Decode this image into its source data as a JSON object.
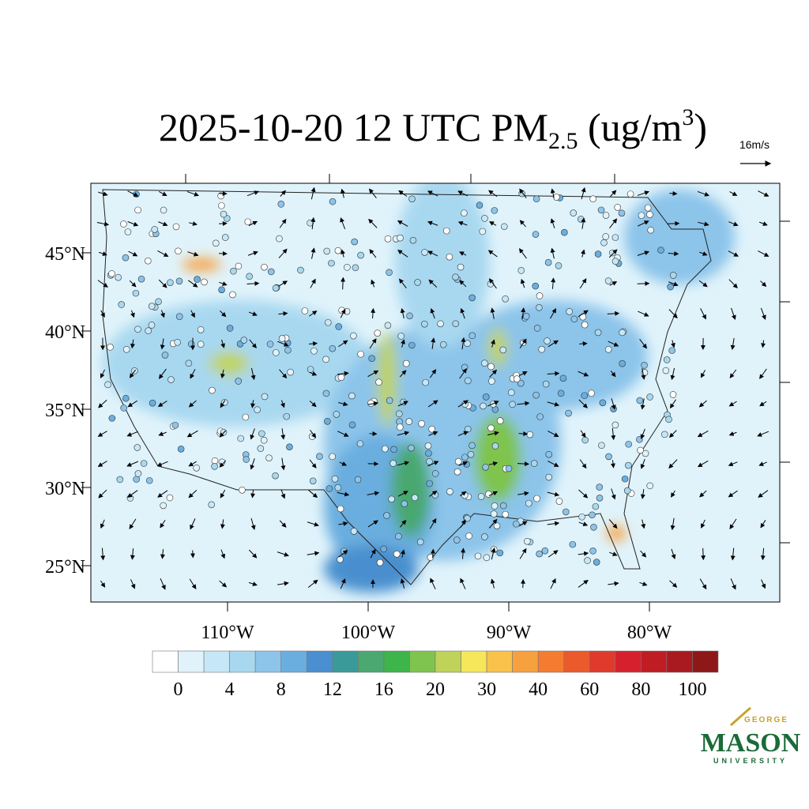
{
  "title": {
    "main": "2025-10-20 12 UTC PM",
    "sub": "2.5",
    "mid": " (ug/m",
    "sup": "3",
    "end": ")"
  },
  "vector_reference": "16m/s",
  "lat_ticks": [
    {
      "value": 45,
      "label": "45°N"
    },
    {
      "value": 40,
      "label": "40°N"
    },
    {
      "value": 35,
      "label": "35°N"
    },
    {
      "value": 30,
      "label": "30°N"
    },
    {
      "value": 25,
      "label": "25°N"
    }
  ],
  "lon_ticks": [
    {
      "value": -110,
      "label": "110°W"
    },
    {
      "value": -100,
      "label": "100°W"
    },
    {
      "value": -90,
      "label": "90°W"
    },
    {
      "value": -80,
      "label": "80°W"
    }
  ],
  "colorbar": {
    "colors": [
      "#ffffff",
      "#e0f3fb",
      "#c6e7f7",
      "#a8d8f0",
      "#8cc4ea",
      "#6aaedf",
      "#4a8fcf",
      "#3a9a9a",
      "#4aa870",
      "#3db54a",
      "#7ec44e",
      "#bfd35a",
      "#f5e65a",
      "#f9c24a",
      "#f7a03e",
      "#f47c30",
      "#ea5a2c",
      "#e03a2c",
      "#d6202e",
      "#c01c24",
      "#a81a20",
      "#8e1818"
    ],
    "labels": [
      0,
      4,
      8,
      12,
      16,
      20,
      30,
      40,
      60,
      80,
      100
    ]
  },
  "logo": {
    "top": "GEORGE",
    "main": "MASON",
    "bottom": "UNIVERSITY"
  }
}
